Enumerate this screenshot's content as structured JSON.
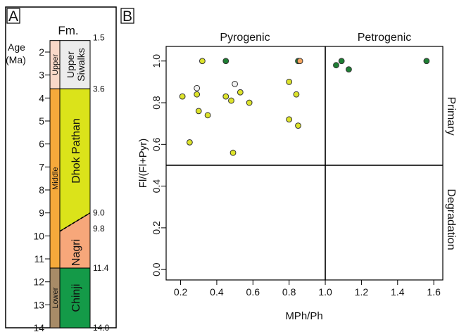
{
  "panel_a": {
    "label": "A",
    "formation_header": "Fm.",
    "age_label_line1": "Age",
    "age_label_line2": "(Ma)",
    "age_ticks": [
      2,
      3,
      4,
      5,
      6,
      7,
      8,
      9,
      10,
      11,
      12,
      13,
      14
    ],
    "age_range": [
      1.5,
      14.0
    ],
    "right_ages": [
      "1.5",
      "3.6",
      "9.0",
      "9.8",
      "11.4",
      "14.0"
    ],
    "epochs": [
      {
        "name": "Upper",
        "top": 1.5,
        "bottom": 3.6,
        "color": "#f9d8c8"
      },
      {
        "name": "Middle",
        "top": 3.6,
        "bottom": 11.4,
        "color": "#f6a93b"
      },
      {
        "name": "Lower",
        "top": 11.4,
        "bottom": 14.0,
        "color": "#a78b67"
      }
    ],
    "formations": [
      {
        "name": "Upper Siwalks",
        "line1": "Upper",
        "line2": "Siwalks",
        "color": "#ececec"
      },
      {
        "name": "Dhok Pathan",
        "color": "#dbe31a"
      },
      {
        "name": "Nagri",
        "color": "#f7a77a"
      },
      {
        "name": "Chinji",
        "color": "#149a48"
      }
    ]
  },
  "panel_b": {
    "label": "B",
    "region_labels": {
      "top_left": "Pyrogenic",
      "top_right": "Petrogenic",
      "right_top": "Primary",
      "right_bottom": "Degradation"
    }
  },
  "chart_data": {
    "type": "scatter",
    "title": "",
    "xlabel": "MPh/Ph",
    "ylabel": "Fl/(Fl+Pyr)",
    "xlim": [
      0.12,
      1.65
    ],
    "ylim": [
      -0.05,
      1.07
    ],
    "xticks": [
      0.2,
      0.4,
      0.6,
      0.8,
      1.0,
      1.2,
      1.4,
      1.6
    ],
    "yticks": [
      0.0,
      0.2,
      0.4,
      0.6,
      0.8,
      1.0
    ],
    "xtick_labels": [
      "0.2",
      "0.4",
      "0.6",
      "0.8",
      "1.0",
      "1.2",
      "1.4",
      "1.6"
    ],
    "ytick_labels": [
      "0.0",
      "0.2",
      "0.4",
      "0.6",
      "0.8",
      "1.0"
    ],
    "threshold_x": 1.0,
    "threshold_y": 0.5,
    "grid": false,
    "colors": {
      "light": "#f2f2f2",
      "yellow": "#dde32a",
      "orange": "#f5a45e",
      "green": "#1d7f33"
    },
    "points": [
      {
        "x": 0.32,
        "y": 1.0,
        "c": "yellow"
      },
      {
        "x": 0.45,
        "y": 1.0,
        "c": "green"
      },
      {
        "x": 0.85,
        "y": 1.0,
        "c": "green"
      },
      {
        "x": 0.86,
        "y": 1.0,
        "c": "orange"
      },
      {
        "x": 0.29,
        "y": 0.87,
        "c": "light"
      },
      {
        "x": 0.5,
        "y": 0.89,
        "c": "light"
      },
      {
        "x": 0.21,
        "y": 0.83,
        "c": "yellow"
      },
      {
        "x": 0.29,
        "y": 0.84,
        "c": "yellow"
      },
      {
        "x": 0.45,
        "y": 0.83,
        "c": "yellow"
      },
      {
        "x": 0.48,
        "y": 0.81,
        "c": "yellow"
      },
      {
        "x": 0.53,
        "y": 0.85,
        "c": "yellow"
      },
      {
        "x": 0.58,
        "y": 0.8,
        "c": "yellow"
      },
      {
        "x": 0.3,
        "y": 0.76,
        "c": "yellow"
      },
      {
        "x": 0.35,
        "y": 0.74,
        "c": "yellow"
      },
      {
        "x": 0.25,
        "y": 0.61,
        "c": "yellow"
      },
      {
        "x": 0.49,
        "y": 0.56,
        "c": "yellow"
      },
      {
        "x": 0.8,
        "y": 0.9,
        "c": "yellow"
      },
      {
        "x": 0.84,
        "y": 0.84,
        "c": "yellow"
      },
      {
        "x": 0.8,
        "y": 0.72,
        "c": "yellow"
      },
      {
        "x": 0.85,
        "y": 0.69,
        "c": "yellow"
      },
      {
        "x": 1.06,
        "y": 0.98,
        "c": "green"
      },
      {
        "x": 1.09,
        "y": 1.0,
        "c": "green"
      },
      {
        "x": 1.13,
        "y": 0.96,
        "c": "green"
      },
      {
        "x": 1.56,
        "y": 1.0,
        "c": "green"
      }
    ]
  }
}
